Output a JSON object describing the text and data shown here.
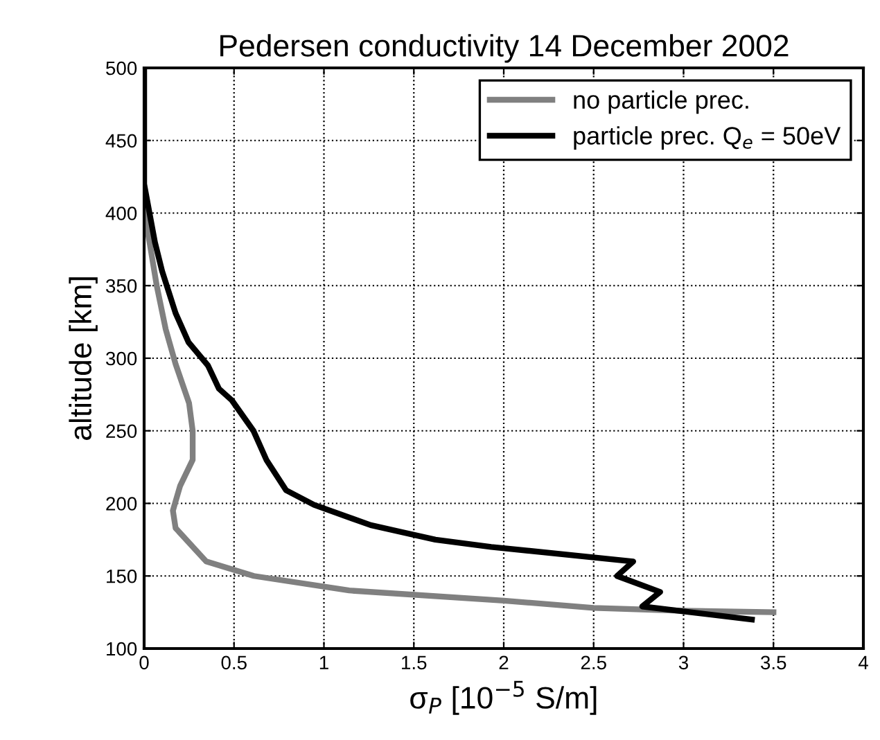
{
  "chart_data": {
    "type": "line",
    "title": "Pedersen conductivity 14 December 2002",
    "xlabel": "σ$_{P}$ [10$^{−5}$ S/m]",
    "ylabel": "altitude [km]",
    "xlim": [
      0,
      4
    ],
    "xticks": [
      0,
      0.5,
      1,
      1.5,
      2,
      2.5,
      3,
      3.5,
      4
    ],
    "ylim": [
      100,
      500
    ],
    "yticks": [
      100,
      150,
      200,
      250,
      300,
      350,
      400,
      450,
      500
    ],
    "grid": true,
    "legend": "top right",
    "line_style": "solid",
    "marker": "none",
    "series": [
      {
        "name": "no particle prec.",
        "color": "#808080",
        "x": [
          0,
          0,
          0.03,
          0.07,
          0.12,
          0.175,
          0.25,
          0.27,
          0.27,
          0.2,
          0.16,
          0.175,
          0.345,
          0.61,
          1.14,
          2.0,
          2.5,
          3.0,
          3.5
        ],
        "values": [
          500,
          400,
          380,
          350,
          320,
          296,
          269,
          250,
          230,
          212,
          195,
          183,
          160,
          150,
          140,
          133,
          128,
          126,
          125
        ]
      },
      {
        "name": "particle prec. Q$_{e}$ = 50eV",
        "color": "#000000",
        "x": [
          0,
          0,
          0.03,
          0.06,
          0.1,
          0.175,
          0.247,
          0.355,
          0.416,
          0.488,
          0.608,
          0.68,
          0.79,
          0.945,
          1.26,
          1.62,
          1.93,
          2.72,
          2.63,
          2.87,
          2.77,
          3.38
        ],
        "values": [
          500,
          420,
          400,
          380,
          360,
          331,
          311,
          295,
          279,
          271,
          250,
          230,
          209,
          199,
          185,
          175,
          170,
          160,
          150,
          139,
          129,
          120
        ]
      }
    ]
  }
}
